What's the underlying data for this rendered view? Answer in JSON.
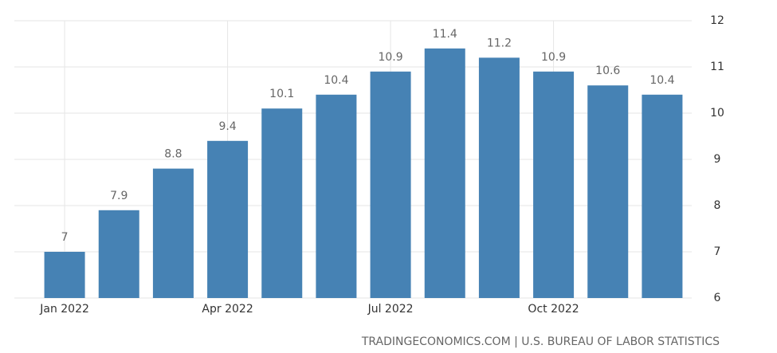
{
  "chart_data": {
    "type": "bar",
    "categories": [
      "Jan 2022",
      null,
      null,
      "Apr 2022",
      null,
      null,
      "Jul 2022",
      null,
      null,
      "Oct 2022",
      null,
      null
    ],
    "values": [
      7,
      7.9,
      8.8,
      9.4,
      10.1,
      10.4,
      10.9,
      11.4,
      11.2,
      10.9,
      10.6,
      10.4
    ],
    "color": "#4682b4",
    "ylim": [
      6,
      12
    ],
    "yticks": [
      6,
      7,
      8,
      9,
      10,
      11,
      12
    ],
    "grid": true,
    "source": "TRADINGECONOMICS.COM | U.S. BUREAU OF LABOR STATISTICS"
  }
}
